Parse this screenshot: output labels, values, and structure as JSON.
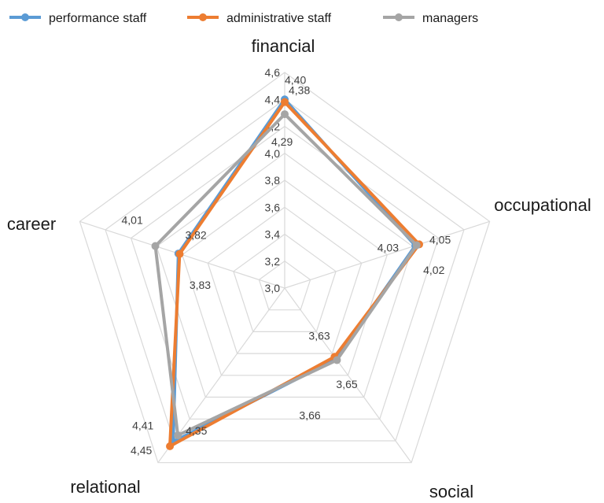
{
  "chart_data": {
    "type": "radar",
    "axes": [
      "financial",
      "occupational",
      "social",
      "relational",
      "career"
    ],
    "rlim": [
      3.0,
      4.6
    ],
    "ticks": [
      "3,0",
      "3,2",
      "3,4",
      "3,6",
      "3,8",
      "4,0",
      "4,2",
      "4,4",
      "4,6"
    ],
    "grid": true,
    "legend_position": "top",
    "series": [
      {
        "name": "performance staff",
        "color": "#5b9bd5",
        "values": [
          4.4,
          4.02,
          3.65,
          4.41,
          3.83
        ],
        "labels": [
          "4,40",
          "4,02",
          "3,65",
          "4,41",
          "3,83"
        ]
      },
      {
        "name": "administrative staff",
        "color": "#ed7d31",
        "values": [
          4.38,
          4.05,
          3.63,
          4.45,
          3.82
        ],
        "labels": [
          "4,38",
          "4,05",
          "3,63",
          "4,45",
          "3,82"
        ]
      },
      {
        "name": "managers",
        "color": "#a5a5a5",
        "values": [
          4.29,
          4.03,
          3.66,
          4.35,
          4.01
        ],
        "labels": [
          "4,29",
          "4,03",
          "3,66",
          "4,35",
          "4,01"
        ]
      }
    ]
  }
}
